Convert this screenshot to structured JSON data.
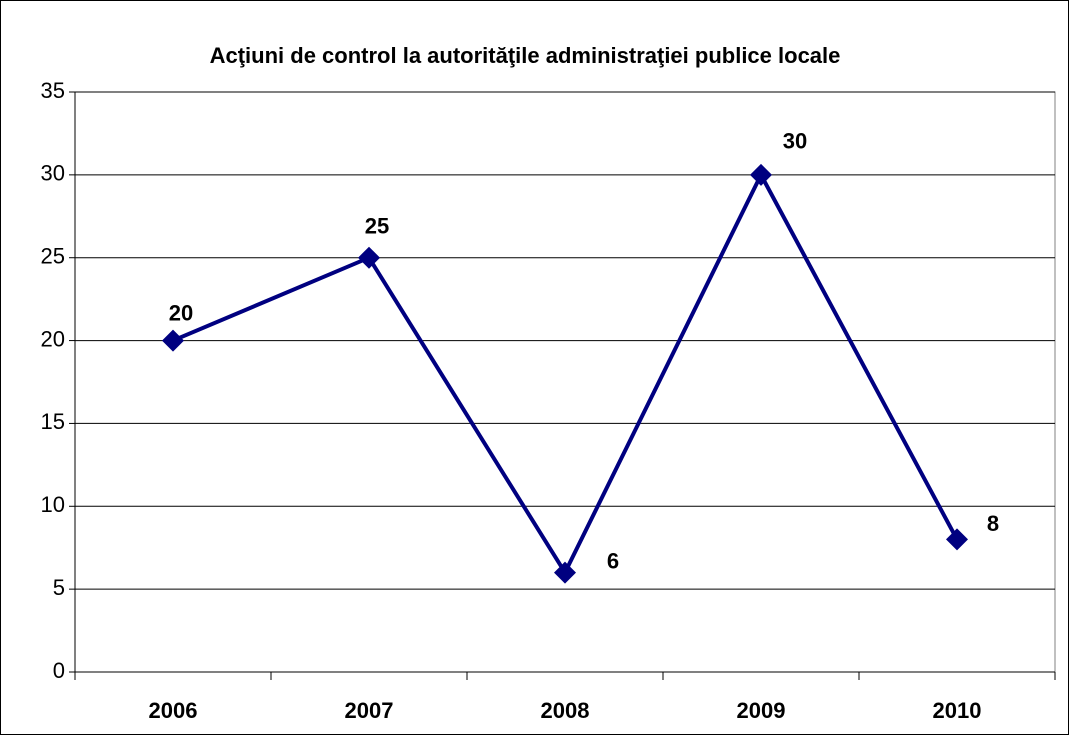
{
  "chart_data": {
    "type": "line",
    "title": "Acţiuni de control la autorităţile administraţiei publice locale",
    "categories": [
      "2006",
      "2007",
      "2008",
      "2009",
      "2010"
    ],
    "values": [
      20,
      25,
      6,
      30,
      8
    ],
    "color": "#000080",
    "ylim": [
      0,
      35
    ],
    "yticks": [
      0,
      5,
      10,
      15,
      20,
      25,
      30,
      35
    ],
    "grid": true
  }
}
